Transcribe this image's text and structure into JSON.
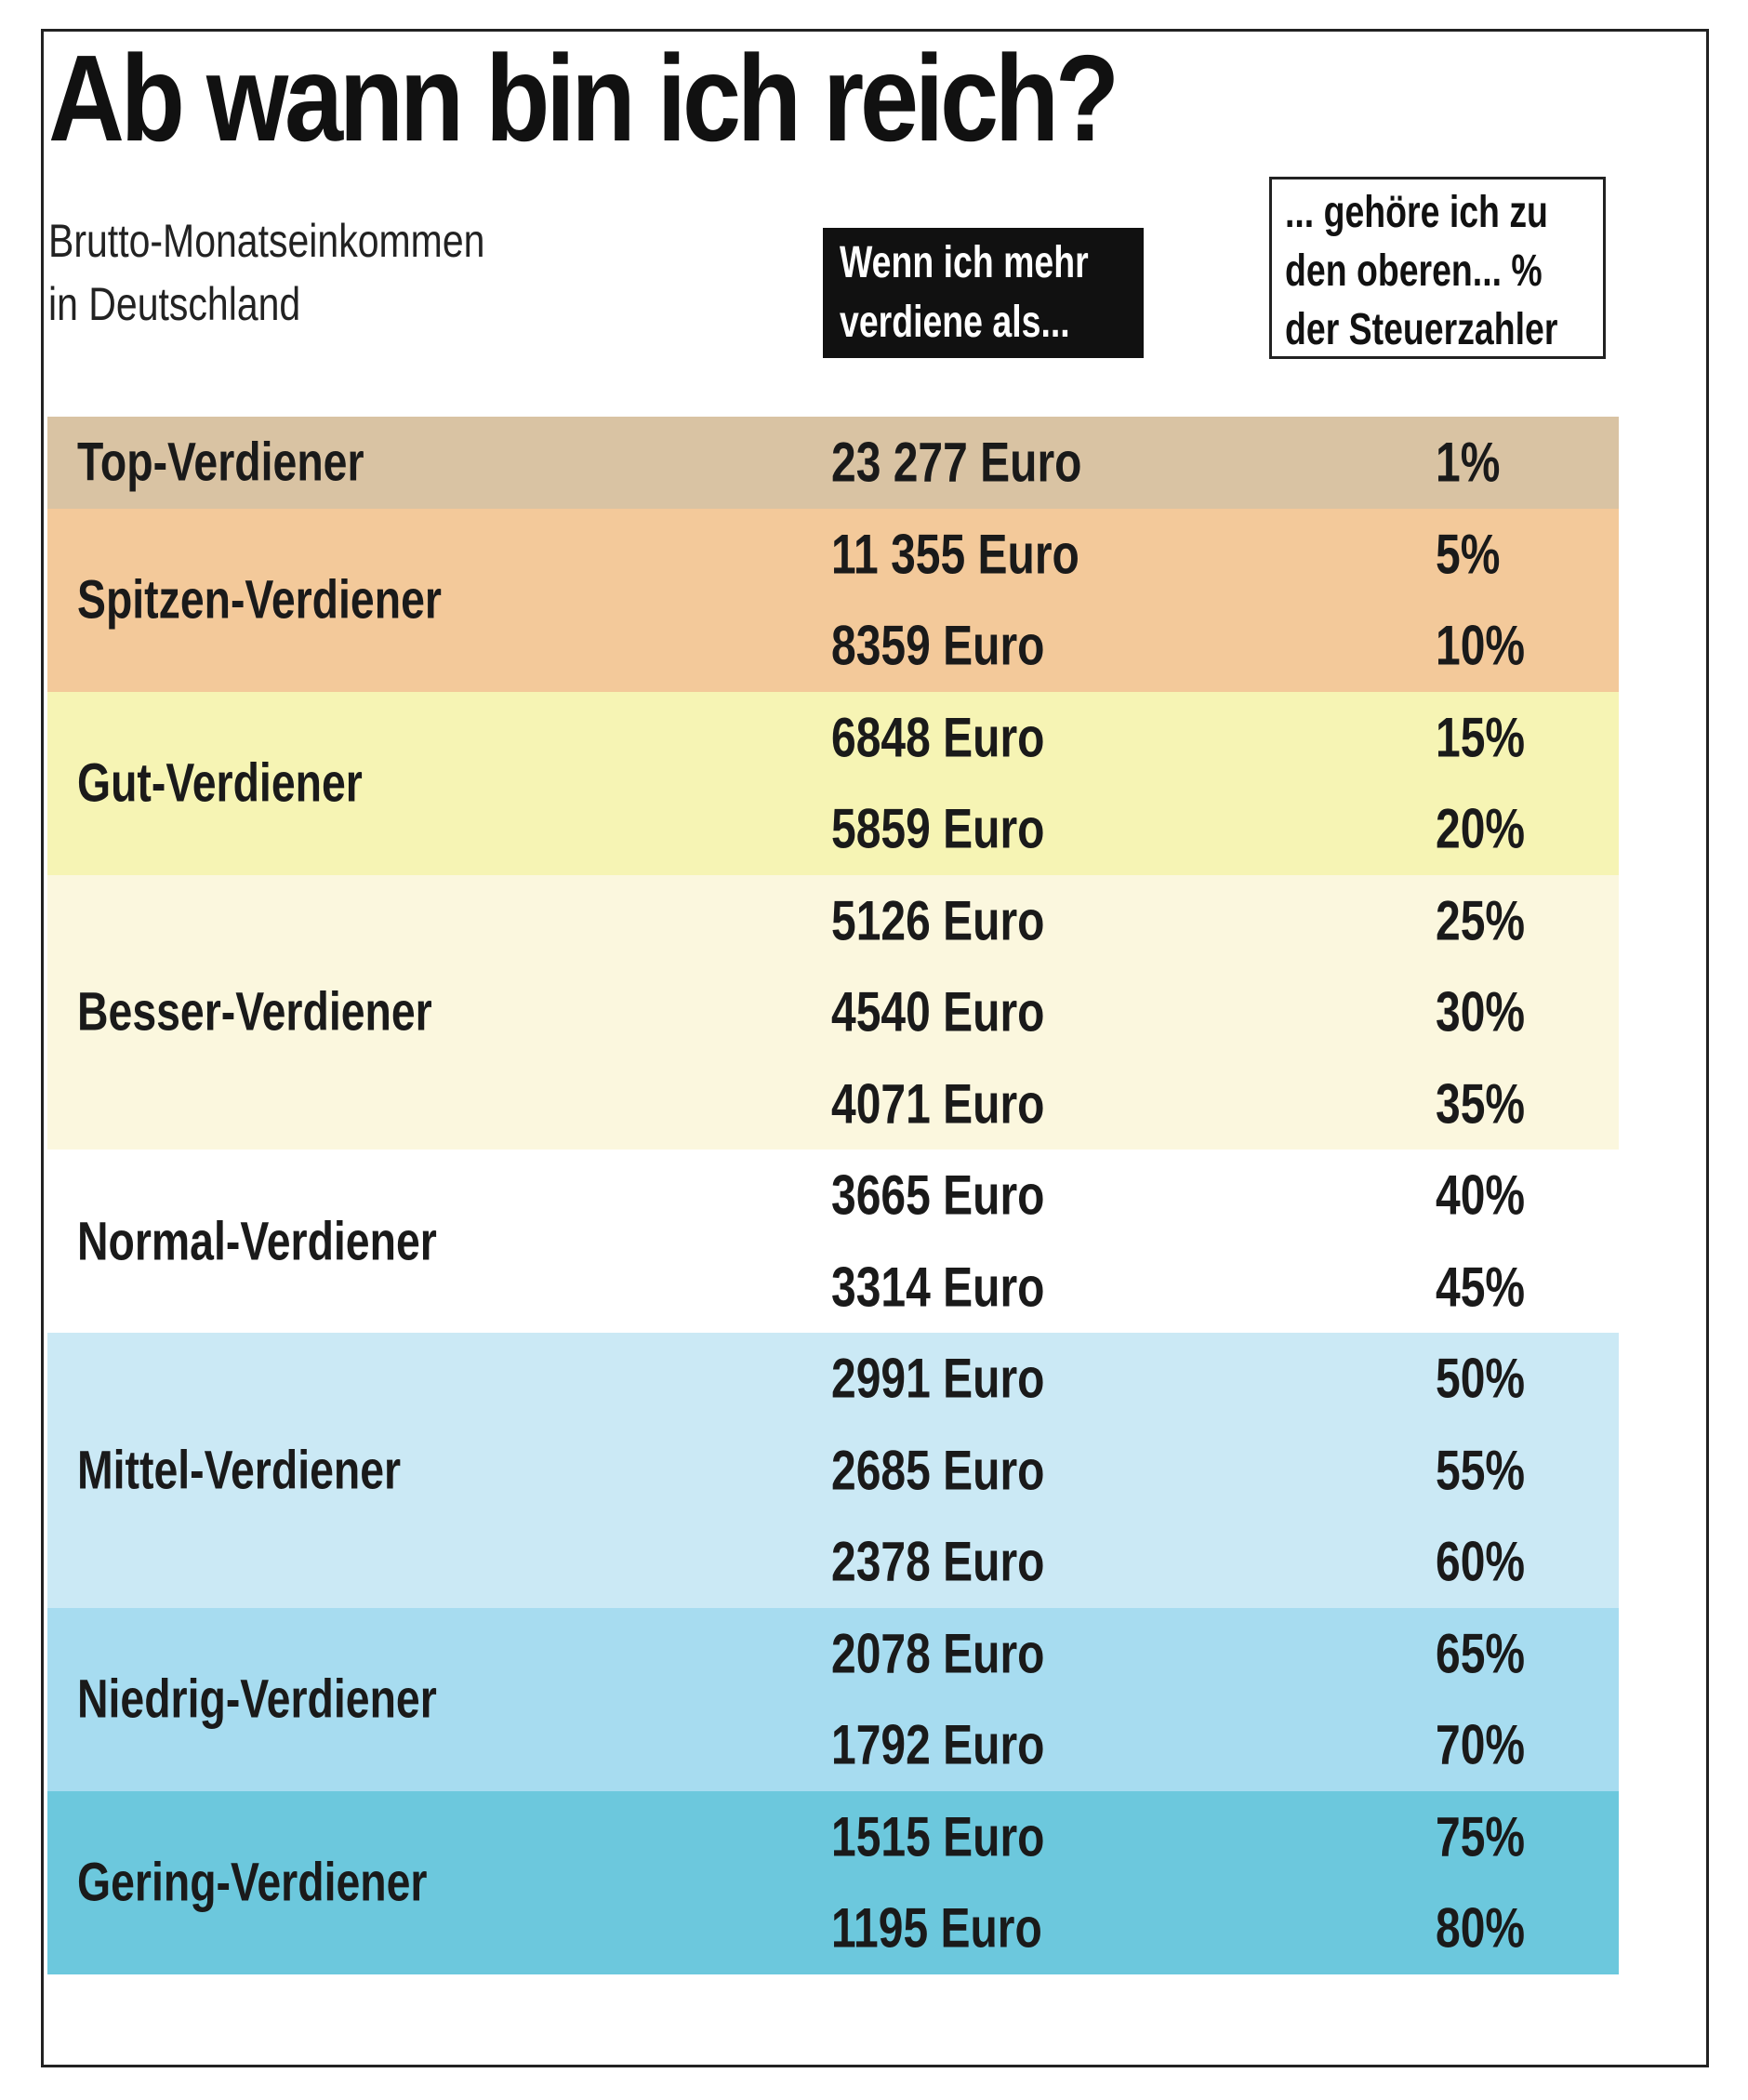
{
  "header": {
    "title": "Ab wann bin ich reich?",
    "subtitle_line1": "Brutto-Monatseinkommen",
    "subtitle_line2": "in Deutschland",
    "col_amount_line1": "Wenn ich mehr",
    "col_amount_line2": "verdiene als...",
    "col_pct_line1": "... gehöre ich zu",
    "col_pct_line2": "den oberen... %",
    "col_pct_line3": "der Steuerzahler"
  },
  "colors": {
    "top": "#d9c3a3",
    "spitzen": "#f3c99a",
    "gut": "#f6f4b4",
    "besser": "#fbf7de",
    "normal": "#ffffff",
    "mittel": "#cbe9f5",
    "niedrig": "#a7dcf0",
    "gering": "#6cc8dd"
  },
  "chart_data": {
    "type": "table",
    "title": "Ab wann bin ich reich?",
    "subtitle": "Brutto-Monatseinkommen in Deutschland",
    "columns": [
      "",
      "Wenn ich mehr verdiene als...",
      "... gehöre ich zu den oberen... % der Steuerzahler"
    ],
    "groups": [
      {
        "name": "Top-Verdiener",
        "color": "#d9c3a3",
        "rows": [
          {
            "amount": "23 277 Euro",
            "pct": "1%"
          }
        ]
      },
      {
        "name": "Spitzen-Verdiener",
        "color": "#f3c99a",
        "rows": [
          {
            "amount": "11 355 Euro",
            "pct": "5%"
          },
          {
            "amount": "8359 Euro",
            "pct": "10%"
          }
        ]
      },
      {
        "name": "Gut-Verdiener",
        "color": "#f6f4b4",
        "rows": [
          {
            "amount": "6848 Euro",
            "pct": "15%"
          },
          {
            "amount": "5859 Euro",
            "pct": "20%"
          }
        ]
      },
      {
        "name": "Besser-Verdiener",
        "color": "#fbf7de",
        "rows": [
          {
            "amount": "5126 Euro",
            "pct": "25%"
          },
          {
            "amount": "4540 Euro",
            "pct": "30%"
          },
          {
            "amount": "4071 Euro",
            "pct": "35%"
          }
        ]
      },
      {
        "name": "Normal-Verdiener",
        "color": "#ffffff",
        "rows": [
          {
            "amount": "3665 Euro",
            "pct": "40%"
          },
          {
            "amount": "3314 Euro",
            "pct": "45%"
          }
        ]
      },
      {
        "name": "Mittel-Verdiener",
        "color": "#cbe9f5",
        "rows": [
          {
            "amount": "2991 Euro",
            "pct": "50%"
          },
          {
            "amount": "2685 Euro",
            "pct": "55%"
          },
          {
            "amount": "2378 Euro",
            "pct": "60%"
          }
        ]
      },
      {
        "name": "Niedrig-Verdiener",
        "color": "#a7dcf0",
        "rows": [
          {
            "amount": "2078 Euro",
            "pct": "65%"
          },
          {
            "amount": "1792 Euro",
            "pct": "70%"
          }
        ]
      },
      {
        "name": "Gering-Verdiener",
        "color": "#6cc8dd",
        "rows": [
          {
            "amount": "1515 Euro",
            "pct": "75%"
          },
          {
            "amount": "1195 Euro",
            "pct": "80%"
          }
        ]
      }
    ]
  }
}
